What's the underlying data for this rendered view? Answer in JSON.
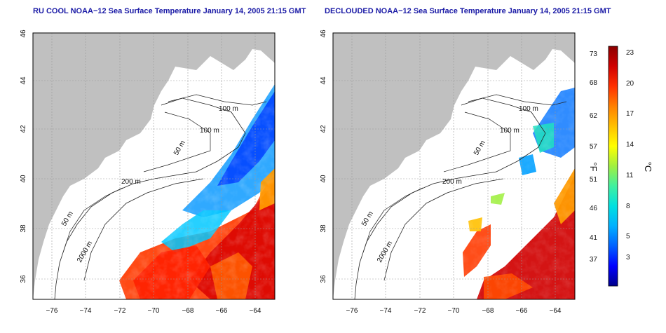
{
  "titles": {
    "left": "RU COOL NOAA−12 Sea Surface Temperature January 14, 2005 21:15 GMT",
    "right": "DECLOUDED NOAA−12 Sea Surface Temperature January 14, 2005 21:15 GMT"
  },
  "axes": {
    "lon_ticks": [
      "−76",
      "−74",
      "−72",
      "−70",
      "−68",
      "−66",
      "−64"
    ],
    "lat_ticks": [
      "36",
      "38",
      "40",
      "42",
      "44",
      "46"
    ]
  },
  "contour_labels": {
    "left": [
      "100 m",
      "100 m",
      "50 m",
      "200 m",
      "50 m",
      "2000 m"
    ],
    "right": [
      "100 m",
      "100 m",
      "50 m",
      "200 m",
      "50 m",
      "2000 m"
    ]
  },
  "colorbar": {
    "fahrenheit_ticks": [
      "73",
      "68",
      "62",
      "57",
      "51",
      "46",
      "41",
      "37"
    ],
    "celsius_ticks": [
      "23",
      "20",
      "17",
      "14",
      "11",
      "8",
      "5",
      "3"
    ],
    "fahrenheit_unit": "°F",
    "celsius_unit": "°C",
    "colors": [
      "#00008b",
      "#0000ff",
      "#0060ff",
      "#00b0ff",
      "#00e0e0",
      "#40f0a0",
      "#a0f040",
      "#ffff00",
      "#ffc000",
      "#ff8000",
      "#ff3000",
      "#d00000",
      "#8b0000"
    ]
  },
  "colors": {
    "land": "#c0c0c0",
    "water": "#ffffff",
    "contour": "#222222",
    "grid": "#9a9a9a"
  }
}
